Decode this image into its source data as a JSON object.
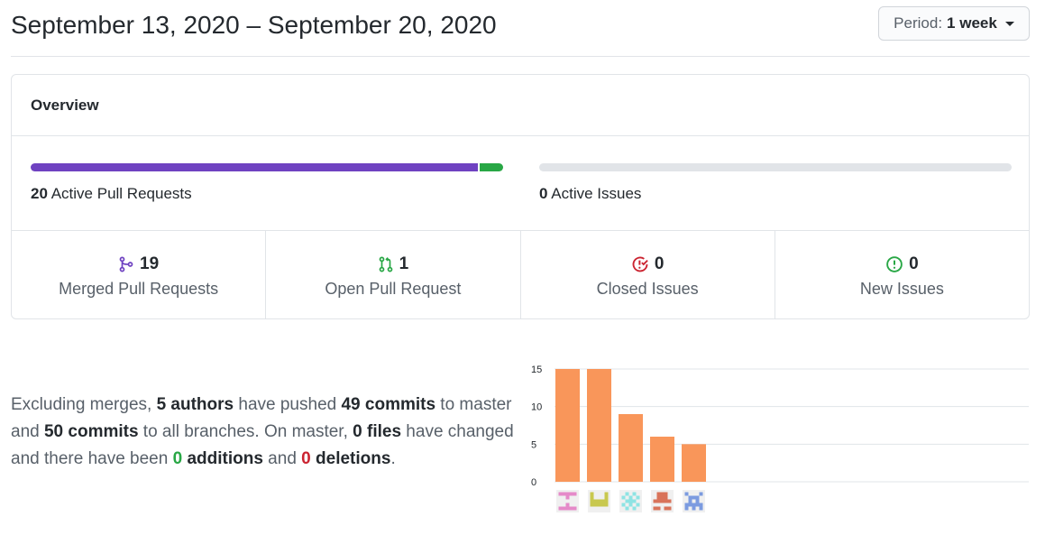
{
  "header": {
    "date_range": "September 13, 2020 – September 20, 2020",
    "period_prefix": "Period:",
    "period_value": "1 week"
  },
  "overview": {
    "title": "Overview",
    "active_prs_count": "20",
    "active_prs_label": "Active Pull Requests",
    "active_issues_count": "0",
    "active_issues_label": "Active Issues",
    "pr_bar": {
      "merged": 19,
      "open": 1
    },
    "cells": [
      {
        "icon": "merge-icon",
        "count": "19",
        "label": "Merged Pull Requests",
        "color": "#6f42c1"
      },
      {
        "icon": "pull-request-icon",
        "count": "1",
        "label": "Open Pull Request",
        "color": "#28a745"
      },
      {
        "icon": "closed-issue-icon",
        "count": "0",
        "label": "Closed Issues",
        "color": "#cb2431"
      },
      {
        "icon": "issue-icon",
        "count": "0",
        "label": "New Issues",
        "color": "#28a745"
      }
    ]
  },
  "summary": {
    "t1": "Excluding merges, ",
    "authors": "5 authors",
    "t2": " have pushed ",
    "commits_master": "49 commits",
    "t3": " to master and ",
    "commits_all": "50 commits",
    "t4": " to all branches. On master, ",
    "files": "0 files",
    "t5": " have changed and there have been ",
    "additions_n": "0",
    "additions_w": " additions",
    "t6": " and ",
    "deletions_n": "0",
    "deletions_w": " deletions",
    "t7": "."
  },
  "chart_data": {
    "type": "bar",
    "categories": [
      "author-1",
      "author-2",
      "author-3",
      "author-4",
      "author-5"
    ],
    "values": [
      15,
      15,
      9,
      6,
      5
    ],
    "yticks": [
      0,
      5,
      10,
      15
    ],
    "ylim": [
      0,
      15
    ],
    "bar_color": "#f9965a",
    "avatar_colors": [
      "#e58ac9",
      "#c8c84e",
      "#8ee3e3",
      "#d9735a",
      "#7c9be0"
    ]
  },
  "colors": {
    "merged": "#6f42c1",
    "open": "#28a745",
    "closed": "#cb2431"
  }
}
